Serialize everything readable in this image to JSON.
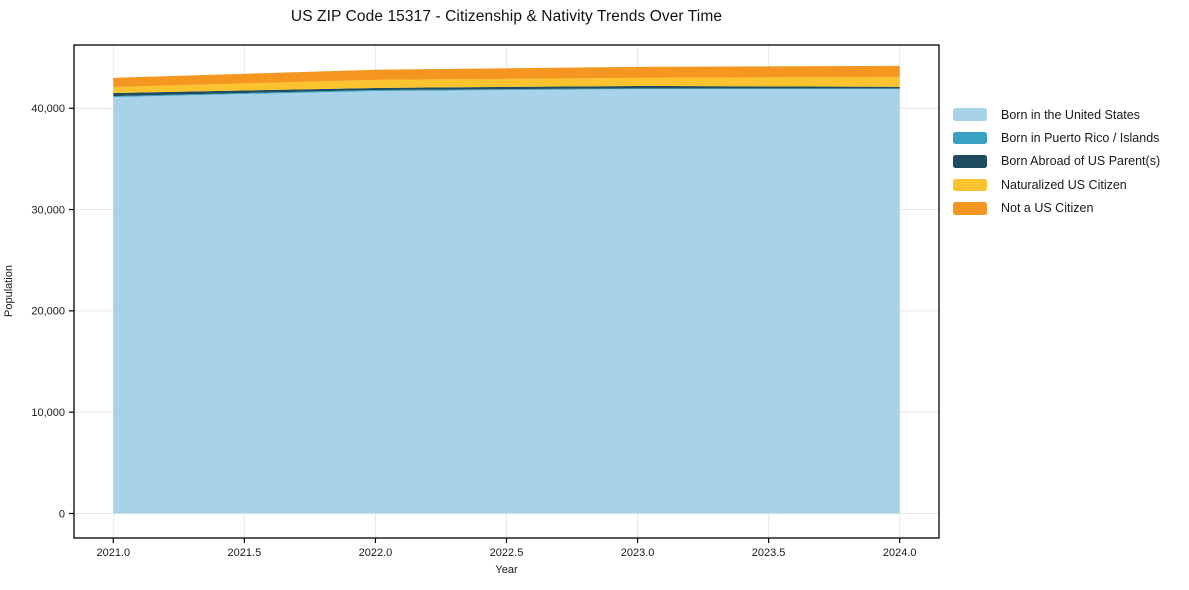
{
  "chart_data": {
    "type": "area",
    "stacked": true,
    "title": "US ZIP Code 15317 - Citizenship & Nativity Trends Over Time",
    "xlabel": "Year",
    "ylabel": "Population",
    "x": [
      2021,
      2022,
      2023,
      2024
    ],
    "series": [
      {
        "name": "Born in the United States",
        "color": "#A7D2E7",
        "values": [
          41100,
          41700,
          41900,
          41900
        ]
      },
      {
        "name": "Born in Puerto Rico / Islands",
        "color": "#39A2C3",
        "values": [
          100,
          100,
          60,
          60
        ]
      },
      {
        "name": "Born Abroad of US Parent(s)",
        "color": "#1F4C5E",
        "values": [
          300,
          200,
          240,
          150
        ]
      },
      {
        "name": "Naturalized US Citizen",
        "color": "#FBC32D",
        "values": [
          600,
          800,
          800,
          990
        ]
      },
      {
        "name": "Not a US Citizen",
        "color": "#F49620",
        "values": [
          900,
          1000,
          1080,
          1080
        ]
      }
    ],
    "totals": [
      43000,
      43800,
      44080,
      44180
    ],
    "xlim": [
      2020.85,
      2024.15
    ],
    "ylim": [
      -2420,
      46240
    ],
    "xticks": {
      "values": [
        2021.0,
        2021.5,
        2022.0,
        2022.5,
        2023.0,
        2023.5,
        2024.0
      ],
      "labels": [
        "2021.0",
        "2021.5",
        "2022.0",
        "2022.5",
        "2023.0",
        "2023.5",
        "2024.0"
      ]
    },
    "yticks": {
      "values": [
        0,
        10000,
        20000,
        30000,
        40000
      ],
      "labels": [
        "0",
        "10,000",
        "20,000",
        "30,000",
        "40,000"
      ]
    },
    "grid": true,
    "grid_color": "#e9e9e9",
    "frame_color": "#000000",
    "tick_label_color": "#1a1a1a",
    "legend_position": "outside-right"
  }
}
